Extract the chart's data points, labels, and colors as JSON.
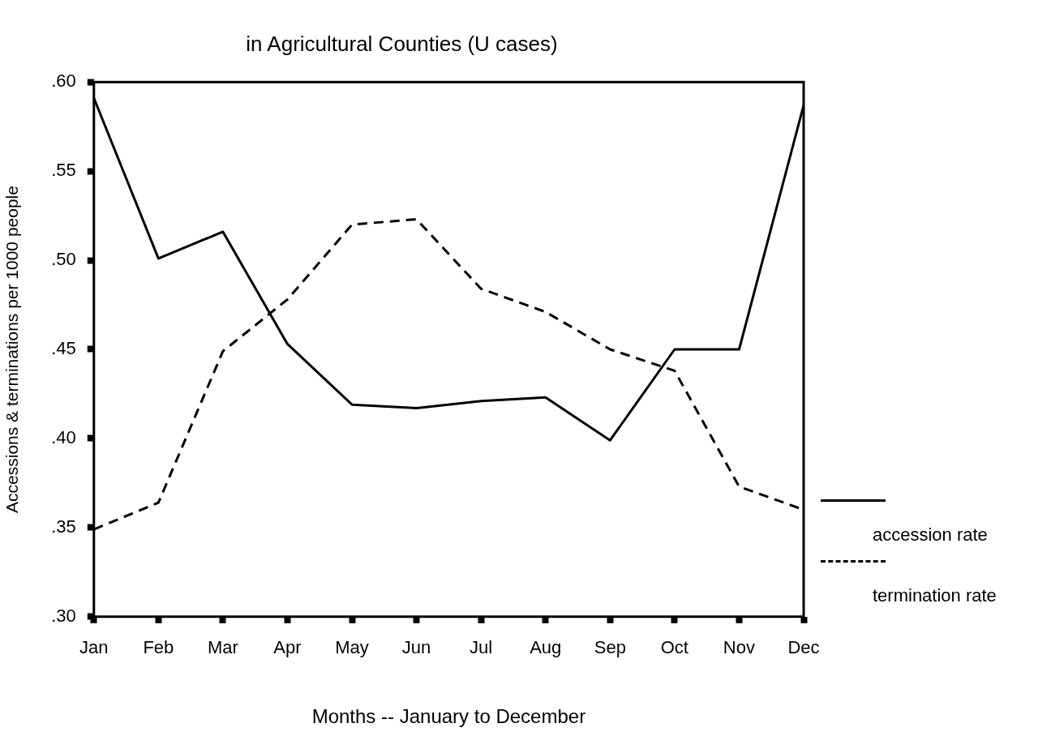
{
  "chart_data": {
    "type": "line",
    "title": "in Agricultural Counties (U cases)",
    "xlabel": "Months -- January to December",
    "ylabel": "Accessions & terminations per 1000 people",
    "categories": [
      "Jan",
      "Feb",
      "Mar",
      "Apr",
      "May",
      "Jun",
      "Jul",
      "Aug",
      "Sep",
      "Oct",
      "Nov",
      "Dec"
    ],
    "series": [
      {
        "name": "accession rate",
        "color": "#000000",
        "line_style": "solid",
        "values": [
          0.591,
          0.501,
          0.516,
          0.453,
          0.419,
          0.417,
          0.421,
          0.423,
          0.399,
          0.45,
          0.45,
          0.587
        ]
      },
      {
        "name": "termination rate",
        "color": "#000000",
        "line_style": "dashed",
        "values": [
          0.349,
          0.364,
          0.449,
          0.478,
          0.52,
          0.523,
          0.484,
          0.471,
          0.45,
          0.438,
          0.373,
          0.36
        ]
      }
    ],
    "ylim": [
      0.3,
      0.6
    ],
    "yticks": [
      {
        "value": 0.3,
        "label": ".30"
      },
      {
        "value": 0.35,
        "label": ".35"
      },
      {
        "value": 0.4,
        "label": ".40"
      },
      {
        "value": 0.45,
        "label": ".45"
      },
      {
        "value": 0.5,
        "label": ".50"
      },
      {
        "value": 0.55,
        "label": ".55"
      },
      {
        "value": 0.6,
        "label": ".60"
      }
    ],
    "grid": false,
    "legend": "right",
    "marker": "none"
  }
}
